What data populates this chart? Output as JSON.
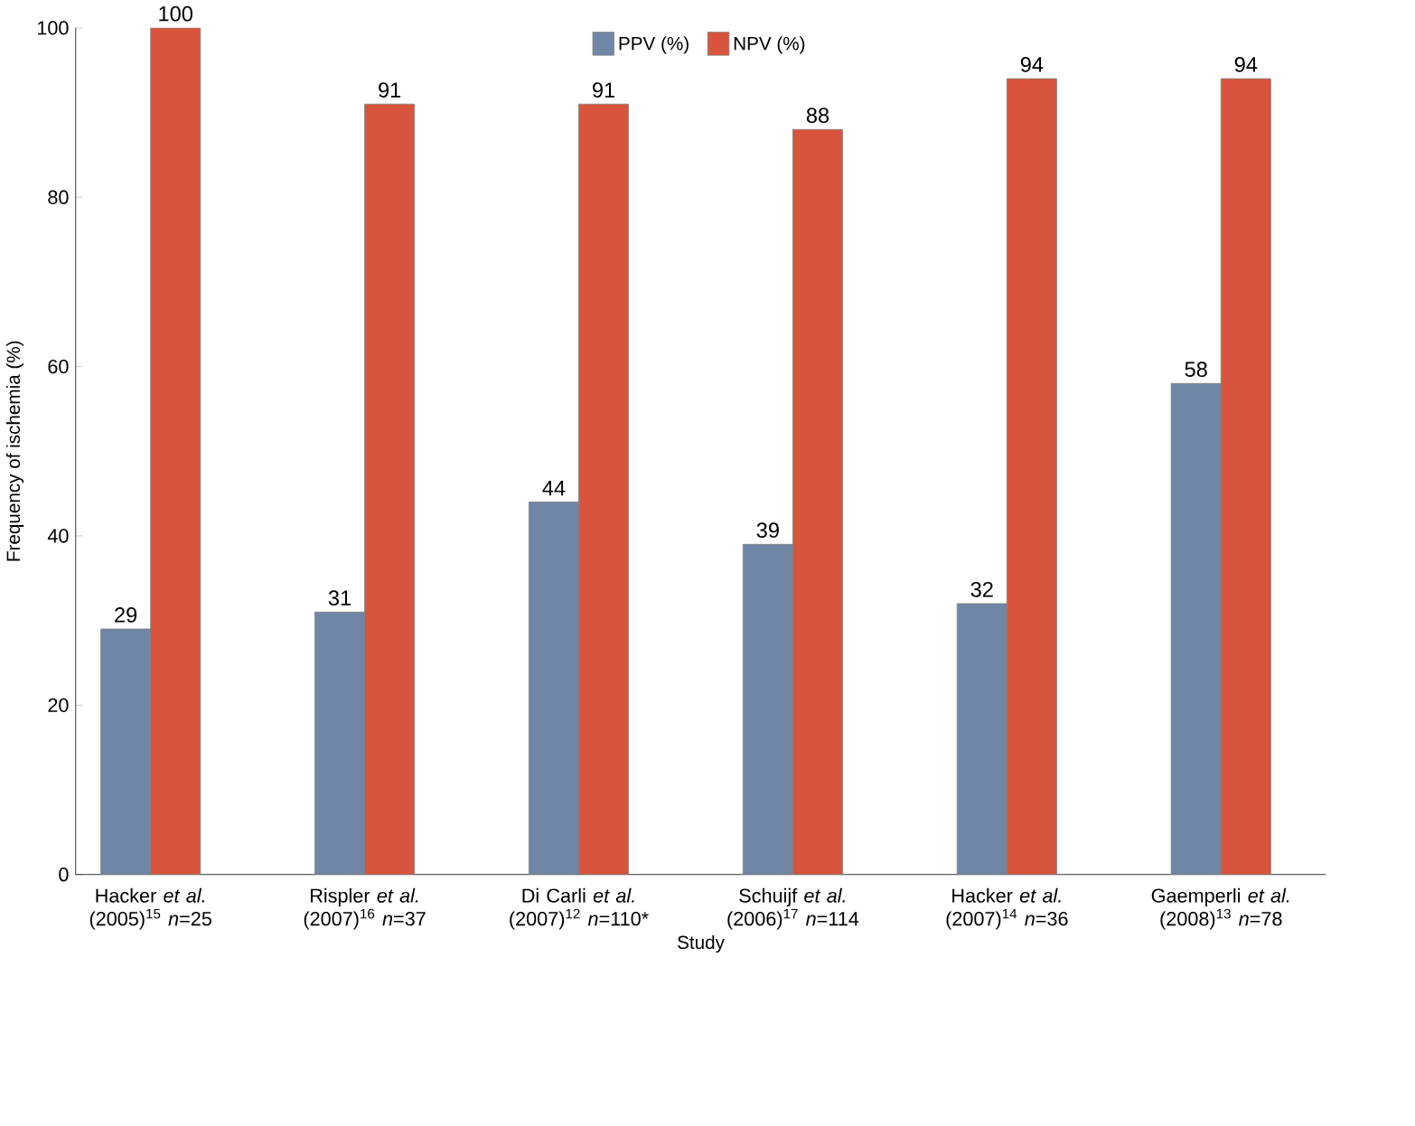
{
  "chart_data": {
    "type": "bar",
    "xlabel": "Study",
    "ylabel": "Frequency of ischemia (%)",
    "categories": [
      "Hacker *et al.* (2005)$^{15}$ *n*=25",
      "Rispler *et al.* (2007)$^{16}$ *n*=37",
      "Di Carli *et al.* (2007)$^{12}$ *n*=110*",
      "Schuijf *et al.* (2006)$^{17}$ *n*=114",
      "Hacker *et al.* (2007)$^{14}$ *n*=36",
      "Gaemperli *et al.* (2008)$^{13}$ *n*=78"
    ],
    "series": [
      {
        "name": "PPV (%)",
        "color": "#6f86a6",
        "values": [
          29,
          31,
          44,
          39,
          32,
          58
        ]
      },
      {
        "name": "NPV (%)",
        "color": "#d9543c",
        "values": [
          100,
          91,
          91,
          88,
          94,
          94
        ]
      }
    ],
    "ylim": [
      0,
      100
    ],
    "yticks": [
      0,
      20,
      40,
      60,
      80,
      100
    ],
    "data_labels": true,
    "legend": "top",
    "grid": false
  }
}
